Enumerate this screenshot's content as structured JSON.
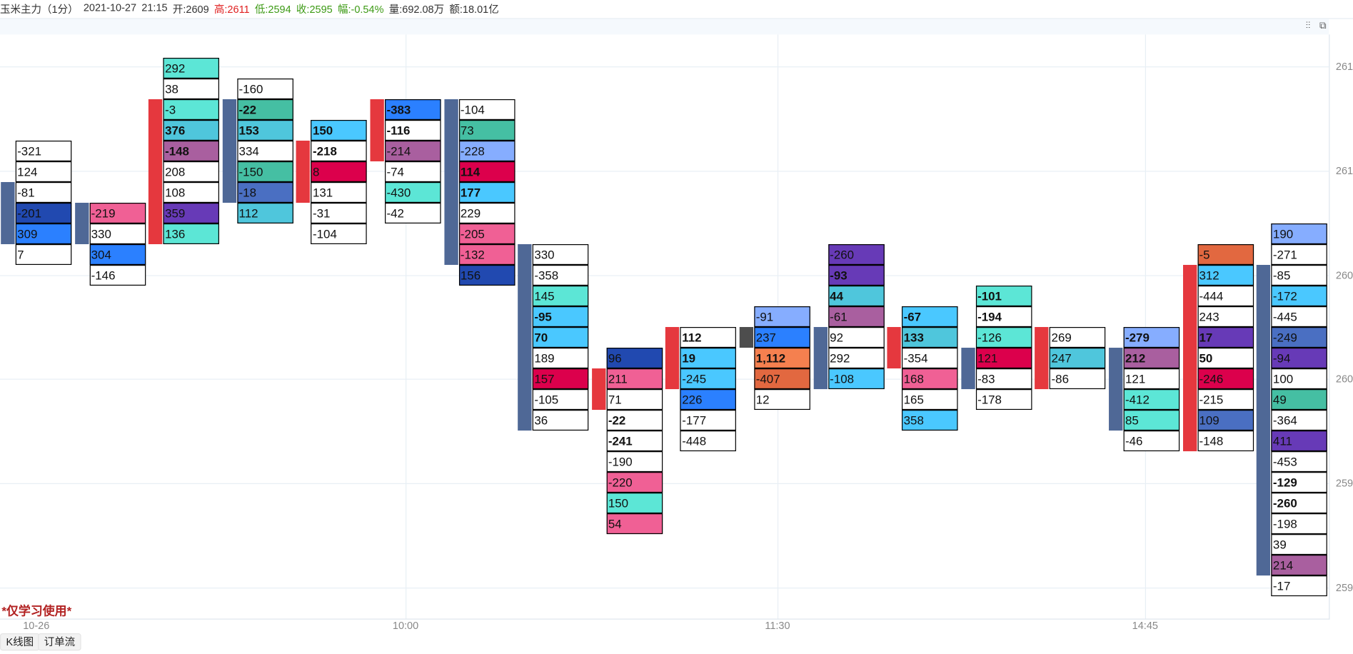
{
  "header": {
    "symbol": "玉米主力（1分）",
    "date": "2021-10-27",
    "time": "21:15",
    "open": "开:2609",
    "high": "高:2611",
    "low": "低:2594",
    "close": "收:2595",
    "change": "幅:-0.54%",
    "volume": "量:692.08万",
    "amount": "额:18.01亿"
  },
  "toolbar_icons": [
    "settings-sliders-icon",
    "layout-switch-icon"
  ],
  "y_axis_labels": [
    "261",
    "261",
    "260",
    "260",
    "259",
    "259"
  ],
  "x_axis_labels": [
    "10-26",
    "10:00",
    "11:30",
    "14:45"
  ],
  "watermark": "*仅学习使用*",
  "bottom_buttons": [
    "K线图",
    "订单流"
  ],
  "colors": {
    "up": "#e5383e",
    "down": "#4f6896",
    "flat": "#4d4d4d",
    "w": "#ffffff",
    "tl": "#5ce6d6",
    "gr": "#45bfa3",
    "cy": "#4fc6dc",
    "lc": "#4ac8ff",
    "pp": "#a95f9f",
    "pu": "#673ab7",
    "db": "#2149b0",
    "bl": "#2b80ff",
    "mb": "#4a6fc2",
    "pk": "#f06095",
    "cr": "#dc004c",
    "lb": "#86adff",
    "or": "#f5804f",
    "or2": "#e26840"
  },
  "columns": [
    {
      "top_level": 4,
      "bar": {
        "dir": "down",
        "from": 6,
        "to": 9
      },
      "cells": [
        [
          "-321",
          "w",
          0
        ],
        [
          "124",
          "w",
          0
        ],
        [
          "-81",
          "w",
          0
        ],
        [
          "-201",
          "db",
          0
        ],
        [
          "309",
          "bl",
          0
        ],
        [
          "7",
          "w",
          0
        ]
      ]
    },
    {
      "top_level": 7,
      "bar": {
        "dir": "down",
        "from": 7,
        "to": 9
      },
      "cells": [
        [
          "-219",
          "pk",
          0
        ],
        [
          "330",
          "w",
          0
        ],
        [
          "304",
          "bl",
          0
        ],
        [
          "-146",
          "w",
          0
        ]
      ]
    },
    {
      "top_level": 0,
      "bar": {
        "dir": "up",
        "from": 2,
        "to": 9
      },
      "cells": [
        [
          "292",
          "tl",
          0
        ],
        [
          "38",
          "w",
          0
        ],
        [
          "-3",
          "tl",
          0
        ],
        [
          "376",
          "cy",
          1
        ],
        [
          "-148",
          "pp",
          1
        ],
        [
          "208",
          "w",
          0
        ],
        [
          "108",
          "w",
          0
        ],
        [
          "359",
          "pu",
          0
        ],
        [
          "136",
          "tl",
          0
        ]
      ]
    },
    {
      "top_level": 1,
      "bar": {
        "dir": "down",
        "from": 2,
        "to": 7
      },
      "cells": [
        [
          "-160",
          "w",
          0
        ],
        [
          "-22",
          "gr",
          1
        ],
        [
          "153",
          "cy",
          1
        ],
        [
          "334",
          "w",
          0
        ],
        [
          "-150",
          "gr",
          0
        ],
        [
          "-18",
          "mb",
          0
        ],
        [
          "112",
          "cy",
          0
        ]
      ]
    },
    {
      "top_level": 3,
      "bar": {
        "dir": "up",
        "from": 4,
        "to": 7
      },
      "cells": [
        [
          "150",
          "lc",
          1
        ],
        [
          "-218",
          "w",
          1
        ],
        [
          "8",
          "cr",
          0
        ],
        [
          "131",
          "w",
          0
        ],
        [
          "-31",
          "w",
          0
        ],
        [
          "-104",
          "w",
          0
        ]
      ]
    },
    {
      "top_level": 2,
      "bar": {
        "dir": "up",
        "from": 2,
        "to": 5
      },
      "cells": [
        [
          "-383",
          "bl",
          1
        ],
        [
          "-116",
          "w",
          1
        ],
        [
          "-214",
          "pp",
          0
        ],
        [
          "-74",
          "w",
          0
        ],
        [
          "-430",
          "tl",
          0
        ],
        [
          "-42",
          "w",
          0
        ]
      ]
    },
    {
      "top_level": 2,
      "bar": {
        "dir": "down",
        "from": 2,
        "to": 10
      },
      "cells": [
        [
          "-104",
          "w",
          0
        ],
        [
          "73",
          "gr",
          0
        ],
        [
          "-228",
          "lb",
          0
        ],
        [
          "114",
          "cr",
          1
        ],
        [
          "177",
          "lc",
          1
        ],
        [
          "229",
          "w",
          0
        ],
        [
          "-205",
          "pk",
          0
        ],
        [
          "-132",
          "pk",
          0
        ],
        [
          "156",
          "db",
          0
        ]
      ]
    },
    {
      "top_level": 9,
      "bar": {
        "dir": "down",
        "from": 9,
        "to": 18
      },
      "cells": [
        [
          "330",
          "w",
          0
        ],
        [
          "-358",
          "w",
          0
        ],
        [
          "145",
          "tl",
          0
        ],
        [
          "-95",
          "lc",
          1
        ],
        [
          "70",
          "lc",
          1
        ],
        [
          "189",
          "w",
          0
        ],
        [
          "157",
          "cr",
          0
        ],
        [
          "-105",
          "w",
          0
        ],
        [
          "36",
          "w",
          0
        ]
      ]
    },
    {
      "top_level": 14,
      "bar": {
        "dir": "up",
        "from": 15,
        "to": 17
      },
      "cells": [
        [
          "96",
          "db",
          0
        ],
        [
          "211",
          "pk",
          0
        ],
        [
          "71",
          "w",
          0
        ],
        [
          "-22",
          "w",
          1
        ],
        [
          "-241",
          "w",
          1
        ],
        [
          "-190",
          "w",
          0
        ],
        [
          "-220",
          "pk",
          0
        ],
        [
          "150",
          "tl",
          0
        ],
        [
          "54",
          "pk",
          0
        ]
      ]
    },
    {
      "top_level": 13,
      "bar": {
        "dir": "up",
        "from": 13,
        "to": 16
      },
      "cells": [
        [
          "112",
          "w",
          1
        ],
        [
          "19",
          "lc",
          1
        ],
        [
          "-245",
          "lc",
          0
        ],
        [
          "226",
          "bl",
          0
        ],
        [
          "-177",
          "w",
          0
        ],
        [
          "-448",
          "w",
          0
        ]
      ]
    },
    {
      "top_level": 12,
      "bar": {
        "dir": "flat",
        "from": 13,
        "to": 14
      },
      "cells": [
        [
          "-91",
          "lb",
          0
        ],
        [
          "237",
          "bl",
          0
        ],
        [
          "1,112",
          "or",
          1
        ],
        [
          "-407",
          "or2",
          0
        ],
        [
          "12",
          "w",
          0
        ]
      ]
    },
    {
      "top_level": 9,
      "bar": {
        "dir": "down",
        "from": 13,
        "to": 16
      },
      "cells": [
        [
          "-260",
          "pu",
          0
        ],
        [
          "-93",
          "pu",
          1
        ],
        [
          "44",
          "cy",
          1
        ],
        [
          "-61",
          "pp",
          0
        ],
        [
          "92",
          "w",
          0
        ],
        [
          "292",
          "w",
          0
        ],
        [
          "-108",
          "lc",
          0
        ]
      ]
    },
    {
      "top_level": 12,
      "bar": {
        "dir": "up",
        "from": 13,
        "to": 15
      },
      "cells": [
        [
          "-67",
          "lc",
          1
        ],
        [
          "133",
          "cy",
          1
        ],
        [
          "-354",
          "w",
          0
        ],
        [
          "168",
          "pk",
          0
        ],
        [
          "165",
          "w",
          0
        ],
        [
          "358",
          "lc",
          0
        ]
      ]
    },
    {
      "top_level": 11,
      "bar": {
        "dir": "down",
        "from": 14,
        "to": 16
      },
      "cells": [
        [
          "-101",
          "tl",
          1
        ],
        [
          "-194",
          "w",
          1
        ],
        [
          "-126",
          "tl",
          0
        ],
        [
          "121",
          "cr",
          0
        ],
        [
          "-83",
          "w",
          0
        ],
        [
          "-178",
          "w",
          0
        ]
      ]
    },
    {
      "top_level": 13,
      "bar": {
        "dir": "up",
        "from": 13,
        "to": 16
      },
      "cells": [
        [
          "269",
          "w",
          0
        ],
        [
          "247",
          "cy",
          0
        ],
        [
          "-86",
          "w",
          0
        ]
      ]
    },
    {
      "top_level": 13,
      "bar": {
        "dir": "down",
        "from": 14,
        "to": 18
      },
      "cells": [
        [
          "-279",
          "lb",
          1
        ],
        [
          "212",
          "pp",
          1
        ],
        [
          "121",
          "w",
          0
        ],
        [
          "-412",
          "tl",
          0
        ],
        [
          "85",
          "tl",
          0
        ],
        [
          "-46",
          "w",
          0
        ]
      ]
    },
    {
      "top_level": 9,
      "bar": {
        "dir": "up",
        "from": 10,
        "to": 19
      },
      "cells": [
        [
          "-5",
          "or2",
          0
        ],
        [
          "312",
          "lc",
          0
        ],
        [
          "-444",
          "w",
          0
        ],
        [
          "243",
          "w",
          0
        ],
        [
          "17",
          "pu",
          1
        ],
        [
          "50",
          "w",
          1
        ],
        [
          "-246",
          "cr",
          0
        ],
        [
          "-215",
          "w",
          0
        ],
        [
          "109",
          "mb",
          0
        ],
        [
          "-148",
          "w",
          0
        ]
      ]
    },
    {
      "top_level": 8,
      "bar": {
        "dir": "down",
        "from": 10,
        "to": 25
      },
      "cells": [
        [
          "190",
          "lb",
          0
        ],
        [
          "-271",
          "w",
          0
        ],
        [
          "-85",
          "w",
          0
        ],
        [
          "-172",
          "lc",
          0
        ],
        [
          "-445",
          "w",
          0
        ],
        [
          "-249",
          "mb",
          0
        ],
        [
          "-94",
          "pu",
          0
        ],
        [
          "100",
          "w",
          0
        ],
        [
          "49",
          "gr",
          0
        ],
        [
          "-364",
          "w",
          0
        ],
        [
          "411",
          "pu",
          0
        ],
        [
          "-453",
          "w",
          0
        ],
        [
          "-129",
          "w",
          1
        ],
        [
          "-260",
          "w",
          1
        ],
        [
          "-198",
          "w",
          0
        ],
        [
          "39",
          "w",
          0
        ],
        [
          "214",
          "pp",
          0
        ],
        [
          "-17",
          "w",
          0
        ]
      ]
    }
  ]
}
